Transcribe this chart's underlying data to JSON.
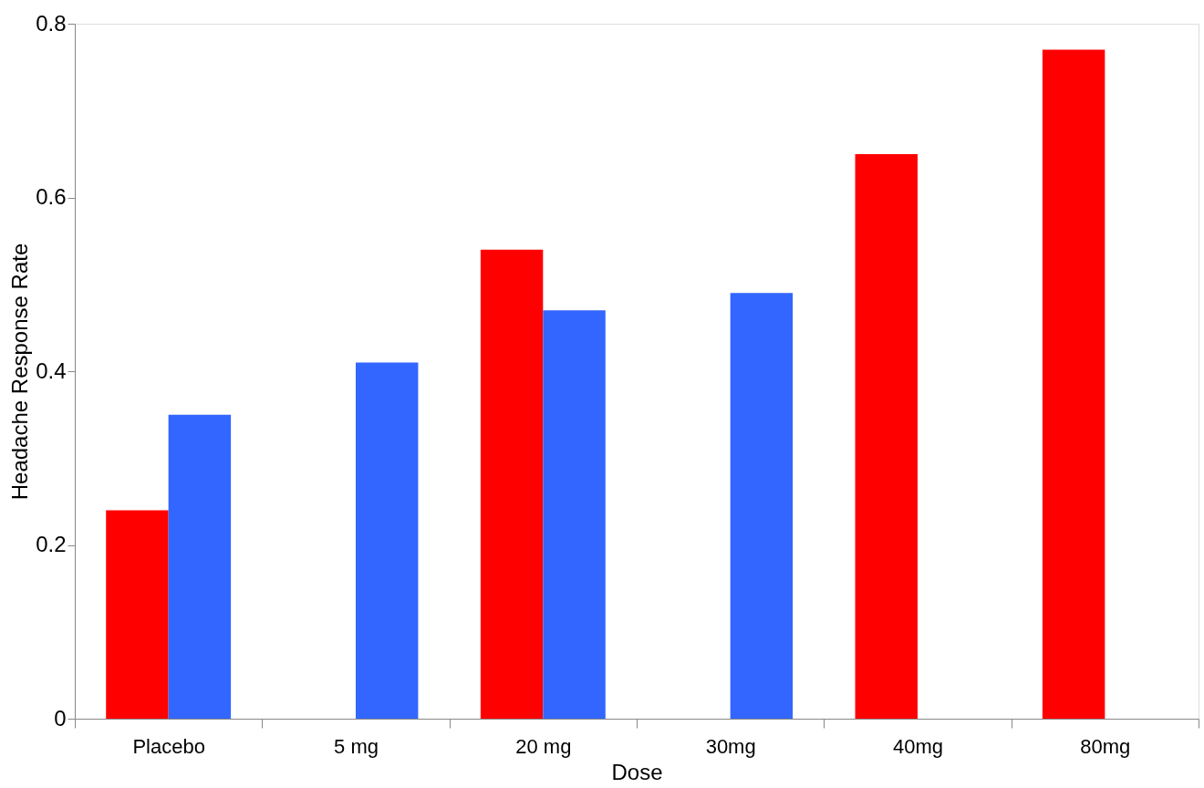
{
  "chart_data": {
    "type": "bar",
    "xlabel": "Dose",
    "ylabel": "Headache Response Rate",
    "categories": [
      "Placebo",
      "5 mg",
      "20 mg",
      "30mg",
      "40mg",
      "80mg"
    ],
    "series": [
      {
        "color": "#ff0000",
        "values": [
          0.24,
          null,
          0.54,
          null,
          0.65,
          0.77
        ]
      },
      {
        "color": "#3366ff",
        "values": [
          0.35,
          0.41,
          0.47,
          0.49,
          null,
          null
        ]
      }
    ],
    "ylim": [
      0,
      0.8
    ],
    "yticks": [
      0,
      0.2,
      0.4,
      0.6,
      0.8
    ],
    "grid": false,
    "legend": false
  }
}
